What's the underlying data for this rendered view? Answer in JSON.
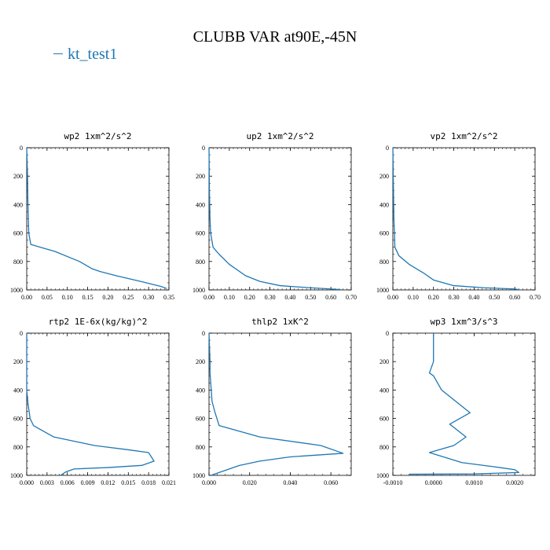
{
  "title": "CLUBB VAR at90E,-45N",
  "legend": {
    "label": "kt_test1",
    "color": "#1f77b4"
  },
  "chart_data": [
    {
      "type": "line",
      "title": "wp2   1xm^2/s^2",
      "xlim": [
        0,
        0.35
      ],
      "ylim": [
        1000,
        0
      ],
      "xticks": [
        0,
        0.05,
        0.1,
        0.15,
        0.2,
        0.25,
        0.3,
        0.35
      ],
      "xticklabels": [
        "0.00",
        "0.05",
        "0.10",
        "0.15",
        "0.20",
        "0.25",
        "0.30",
        "0.35"
      ],
      "yticks": [
        0,
        200,
        400,
        600,
        800,
        1000
      ],
      "yticklabels": [
        "0",
        "200",
        "400",
        "600",
        "800",
        "1000"
      ],
      "series": [
        {
          "name": "kt_test1",
          "x": [
            0,
            0.002,
            0.003,
            0.004,
            0.005,
            0.01,
            0.07,
            0.13,
            0.16,
            0.18,
            0.22,
            0.28,
            0.33,
            0.345
          ],
          "y": [
            0,
            200,
            400,
            500,
            600,
            680,
            730,
            800,
            850,
            870,
            900,
            940,
            975,
            990
          ]
        }
      ]
    },
    {
      "type": "line",
      "title": "up2   1xm^2/s^2",
      "xlim": [
        0,
        0.7
      ],
      "ylim": [
        1000,
        0
      ],
      "xticks": [
        0,
        0.1,
        0.2,
        0.3,
        0.4,
        0.5,
        0.6,
        0.7
      ],
      "xticklabels": [
        "0.00",
        "0.10",
        "0.20",
        "0.30",
        "0.40",
        "0.50",
        "0.60",
        "0.70"
      ],
      "yticks": [
        0,
        200,
        400,
        600,
        800,
        1000
      ],
      "yticklabels": [
        "0",
        "200",
        "400",
        "600",
        "800",
        "1000"
      ],
      "series": [
        {
          "name": "kt_test1",
          "x": [
            0,
            0.002,
            0.005,
            0.008,
            0.02,
            0.05,
            0.1,
            0.18,
            0.25,
            0.35,
            0.5,
            0.6,
            0.65
          ],
          "y": [
            0,
            300,
            500,
            600,
            700,
            750,
            820,
            900,
            940,
            970,
            985,
            993,
            998
          ]
        }
      ]
    },
    {
      "type": "line",
      "title": "vp2   1xm^2/s^2",
      "xlim": [
        0,
        0.7
      ],
      "ylim": [
        1000,
        0
      ],
      "xticks": [
        0,
        0.1,
        0.2,
        0.3,
        0.4,
        0.5,
        0.6,
        0.7
      ],
      "xticklabels": [
        "0.00",
        "0.10",
        "0.20",
        "0.30",
        "0.40",
        "0.50",
        "0.60",
        "0.70"
      ],
      "yticks": [
        0,
        200,
        400,
        600,
        800,
        1000
      ],
      "yticklabels": [
        "0",
        "200",
        "400",
        "600",
        "800",
        "1000"
      ],
      "series": [
        {
          "name": "kt_test1",
          "x": [
            0,
            0.003,
            0.005,
            0.008,
            0.01,
            0.03,
            0.08,
            0.15,
            0.2,
            0.3,
            0.45,
            0.6,
            0.62
          ],
          "y": [
            0,
            300,
            500,
            600,
            700,
            760,
            820,
            880,
            930,
            970,
            985,
            993,
            998
          ]
        }
      ]
    },
    {
      "type": "line",
      "title": "rtp2   1E-6x(kg/kg)^2",
      "xlim": [
        0,
        0.021
      ],
      "ylim": [
        1000,
        0
      ],
      "xticks": [
        0,
        0.003,
        0.006,
        0.009,
        0.012,
        0.015,
        0.018,
        0.021
      ],
      "xticklabels": [
        "0.000",
        "0.003",
        "0.006",
        "0.009",
        "0.012",
        "0.015",
        "0.018",
        "0.021"
      ],
      "yticks": [
        0,
        200,
        400,
        600,
        800,
        1000
      ],
      "yticklabels": [
        "0",
        "200",
        "400",
        "600",
        "800",
        "1000"
      ],
      "series": [
        {
          "name": "kt_test1",
          "x": [
            0,
            0,
            0.0002,
            0.0005,
            0.001,
            0.004,
            0.01,
            0.015,
            0.018,
            0.0188,
            0.017,
            0.012,
            0.007,
            0.0058,
            0.005
          ],
          "y": [
            0,
            400,
            500,
            600,
            650,
            730,
            790,
            820,
            840,
            900,
            930,
            945,
            955,
            975,
            1000
          ]
        }
      ]
    },
    {
      "type": "line",
      "title": "thlp2   1xK^2",
      "xlim": [
        0,
        0.07
      ],
      "ylim": [
        1000,
        0
      ],
      "xticks": [
        0,
        0.02,
        0.04,
        0.06
      ],
      "xticklabels": [
        "0.000",
        "0.020",
        "0.040",
        "0.060"
      ],
      "yticks": [
        0,
        200,
        400,
        600,
        800,
        1000
      ],
      "yticklabels": [
        "0",
        "200",
        "400",
        "600",
        "800",
        "1000"
      ],
      "series": [
        {
          "name": "kt_test1",
          "x": [
            0,
            0.0005,
            0.0005,
            0.001,
            0.0015,
            0.003,
            0.005,
            0.025,
            0.055,
            0.066,
            0.04,
            0.025,
            0.015,
            0.009,
            0.004,
            0.001
          ],
          "y": [
            0,
            200,
            280,
            380,
            480,
            560,
            650,
            730,
            790,
            845,
            870,
            900,
            930,
            960,
            985,
            1000
          ]
        }
      ]
    },
    {
      "type": "line",
      "title": "wp3   1xm^3/s^3",
      "xlim": [
        -0.001,
        0.0025
      ],
      "ylim": [
        1000,
        0
      ],
      "xticks": [
        -0.001,
        0,
        0.001,
        0.002
      ],
      "xticklabels": [
        "-0.0010",
        "0.0000",
        "0.0010",
        "0.0020"
      ],
      "yticks": [
        0,
        200,
        400,
        600,
        800,
        1000
      ],
      "yticklabels": [
        "0",
        "200",
        "400",
        "600",
        "800",
        "1000"
      ],
      "series": [
        {
          "name": "kt_test1",
          "x": [
            0,
            0,
            0,
            -0.0001,
            0,
            0.0002,
            0.0009,
            0.0004,
            0.0008,
            0.0005,
            -0.0001,
            0.0007,
            0.0015,
            0.002,
            0.0021,
            0.001,
            -0.0006
          ],
          "y": [
            0,
            100,
            200,
            280,
            300,
            400,
            560,
            640,
            730,
            790,
            840,
            910,
            940,
            960,
            980,
            990,
            992
          ]
        }
      ]
    }
  ]
}
